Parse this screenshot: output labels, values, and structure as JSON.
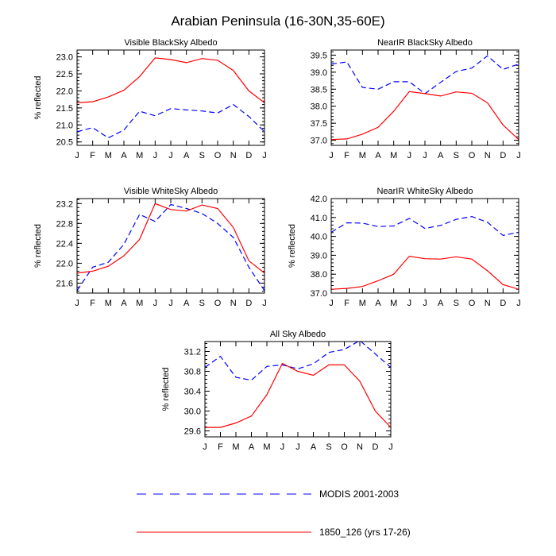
{
  "title": "Arabian Peninsula (16-30N,35-60E)",
  "legend": [
    {
      "label": "MODIS 2001-2003",
      "color": "#0000ff",
      "dash": "dashed"
    },
    {
      "label": "1850_126 (yrs 17-26)",
      "color": "#ff0000",
      "dash": "solid"
    }
  ],
  "chart_data": [
    {
      "type": "line",
      "title": "Visible BlackSky Albedo",
      "xlabel": "",
      "ylabel": "% reflected",
      "categories": [
        "J",
        "F",
        "M",
        "A",
        "M",
        "J",
        "J",
        "A",
        "S",
        "O",
        "N",
        "D",
        "J"
      ],
      "ylim": [
        20.4,
        23.2
      ],
      "yticks": [
        20.5,
        21.0,
        21.5,
        22.0,
        22.5,
        23.0
      ],
      "ytick_labels": [
        "20.5",
        "21.0",
        "21.5",
        "22.0",
        "22.5",
        "23.0"
      ],
      "series": [
        {
          "name": "MODIS 2001-2003",
          "values": [
            20.8,
            20.92,
            20.62,
            20.85,
            21.4,
            21.27,
            21.48,
            21.44,
            21.41,
            21.35,
            21.6,
            21.25,
            20.8
          ]
        },
        {
          "name": "1850_126 (yrs 17-26)",
          "values": [
            21.65,
            21.68,
            21.82,
            22.02,
            22.42,
            22.97,
            22.92,
            22.83,
            22.95,
            22.9,
            22.6,
            22.0,
            21.65
          ]
        }
      ]
    },
    {
      "type": "line",
      "title": "NearIR BlackSky Albedo",
      "xlabel": "",
      "ylabel": "",
      "categories": [
        "J",
        "F",
        "M",
        "A",
        "M",
        "J",
        "J",
        "A",
        "S",
        "O",
        "N",
        "D",
        "J"
      ],
      "ylim": [
        36.85,
        39.65
      ],
      "yticks": [
        37.0,
        37.5,
        38.0,
        38.5,
        39.0,
        39.5
      ],
      "ytick_labels": [
        "37.0",
        "37.5",
        "38.0",
        "38.5",
        "39.0",
        "39.5"
      ],
      "series": [
        {
          "name": "MODIS 2001-2003",
          "values": [
            39.24,
            39.3,
            38.55,
            38.5,
            38.72,
            38.72,
            38.37,
            38.7,
            39.02,
            39.12,
            39.48,
            39.08,
            39.24
          ]
        },
        {
          "name": "1850_126 (yrs 17-26)",
          "values": [
            37.02,
            37.04,
            37.18,
            37.38,
            37.85,
            38.43,
            38.37,
            38.3,
            38.42,
            38.38,
            38.1,
            37.45,
            37.02
          ]
        }
      ]
    },
    {
      "type": "line",
      "title": "Visible WhiteSky Albedo",
      "xlabel": "",
      "ylabel": "% reflected",
      "categories": [
        "J",
        "F",
        "M",
        "A",
        "M",
        "J",
        "J",
        "A",
        "S",
        "O",
        "N",
        "D",
        "J"
      ],
      "ylim": [
        21.4,
        23.3
      ],
      "yticks": [
        21.6,
        22.0,
        22.4,
        22.8,
        23.2
      ],
      "ytick_labels": [
        "21.6",
        "22.0",
        "22.4",
        "22.8",
        "23.2"
      ],
      "series": [
        {
          "name": "MODIS 2001-2003",
          "values": [
            21.45,
            21.92,
            22.02,
            22.38,
            22.98,
            22.84,
            23.18,
            23.1,
            23.0,
            22.8,
            22.52,
            21.92,
            21.45
          ]
        },
        {
          "name": "1850_126 (yrs 17-26)",
          "values": [
            21.8,
            21.84,
            21.94,
            22.15,
            22.48,
            23.2,
            23.08,
            23.05,
            23.17,
            23.1,
            22.72,
            22.05,
            21.8
          ]
        }
      ]
    },
    {
      "type": "line",
      "title": "NearIR WhiteSky Albedo",
      "xlabel": "",
      "ylabel": "% reflected",
      "categories": [
        "J",
        "F",
        "M",
        "A",
        "M",
        "J",
        "J",
        "A",
        "S",
        "O",
        "N",
        "D",
        "J"
      ],
      "ylim": [
        37.0,
        42.0
      ],
      "yticks": [
        37.0,
        38.0,
        39.0,
        40.0,
        41.0,
        42.0
      ],
      "ytick_labels": [
        "37.0",
        "38.0",
        "39.0",
        "40.0",
        "41.0",
        "42.0"
      ],
      "series": [
        {
          "name": "MODIS 2001-2003",
          "values": [
            40.22,
            40.72,
            40.7,
            40.52,
            40.55,
            40.95,
            40.42,
            40.58,
            40.9,
            41.05,
            40.75,
            40.05,
            40.22
          ]
        },
        {
          "name": "1850_126 (yrs 17-26)",
          "values": [
            37.2,
            37.25,
            37.35,
            37.65,
            38.0,
            38.95,
            38.82,
            38.8,
            38.92,
            38.8,
            38.18,
            37.45,
            37.2
          ]
        }
      ]
    },
    {
      "type": "line",
      "title": "All Sky Albedo",
      "xlabel": "",
      "ylabel": "% reflected",
      "categories": [
        "J",
        "F",
        "M",
        "A",
        "M",
        "J",
        "J",
        "A",
        "S",
        "O",
        "N",
        "D",
        "J"
      ],
      "ylim": [
        29.48,
        31.4
      ],
      "yticks": [
        29.6,
        30.0,
        30.4,
        30.8,
        31.2
      ],
      "ytick_labels": [
        "29.6",
        "30.0",
        "30.4",
        "30.8",
        "31.2"
      ],
      "series": [
        {
          "name": "MODIS 2001-2003",
          "values": [
            30.88,
            31.1,
            30.68,
            30.62,
            30.9,
            30.93,
            30.85,
            30.95,
            31.18,
            31.24,
            31.42,
            31.15,
            30.88
          ]
        },
        {
          "name": "1850_126 (yrs 17-26)",
          "values": [
            29.67,
            29.67,
            29.76,
            29.9,
            30.33,
            30.96,
            30.8,
            30.72,
            30.93,
            30.93,
            30.6,
            30.0,
            29.67
          ]
        }
      ]
    }
  ]
}
